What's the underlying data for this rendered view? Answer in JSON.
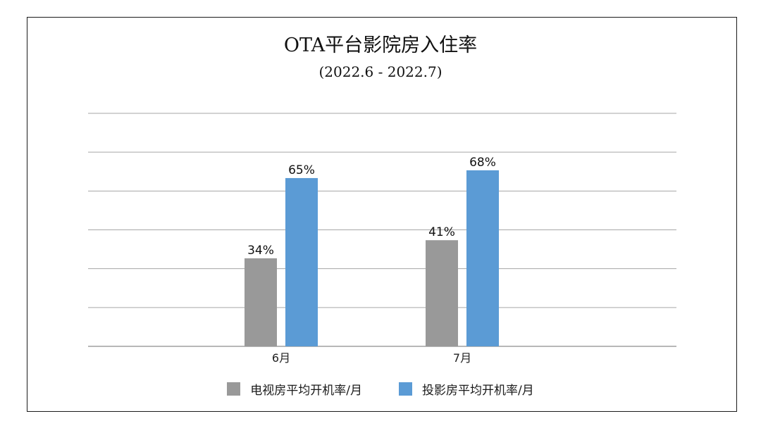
{
  "chart_data": {
    "type": "bar",
    "title": "OTA平台影院房入住率",
    "subtitle": "(2022.6 - 2022.7)",
    "categories": [
      "6月",
      "7月"
    ],
    "series": [
      {
        "name": "电视房平均开机率/月",
        "values": [
          34,
          41
        ],
        "labels": [
          "34%",
          "41%"
        ],
        "color": "#999999"
      },
      {
        "name": "投影房平均开机率/月",
        "values": [
          65,
          68
        ],
        "labels": [
          "65%",
          "68%"
        ],
        "color": "#5b9bd5"
      }
    ],
    "ylim": [
      0,
      90
    ],
    "grid": true,
    "legend": "bottom",
    "value_unit": "%"
  }
}
